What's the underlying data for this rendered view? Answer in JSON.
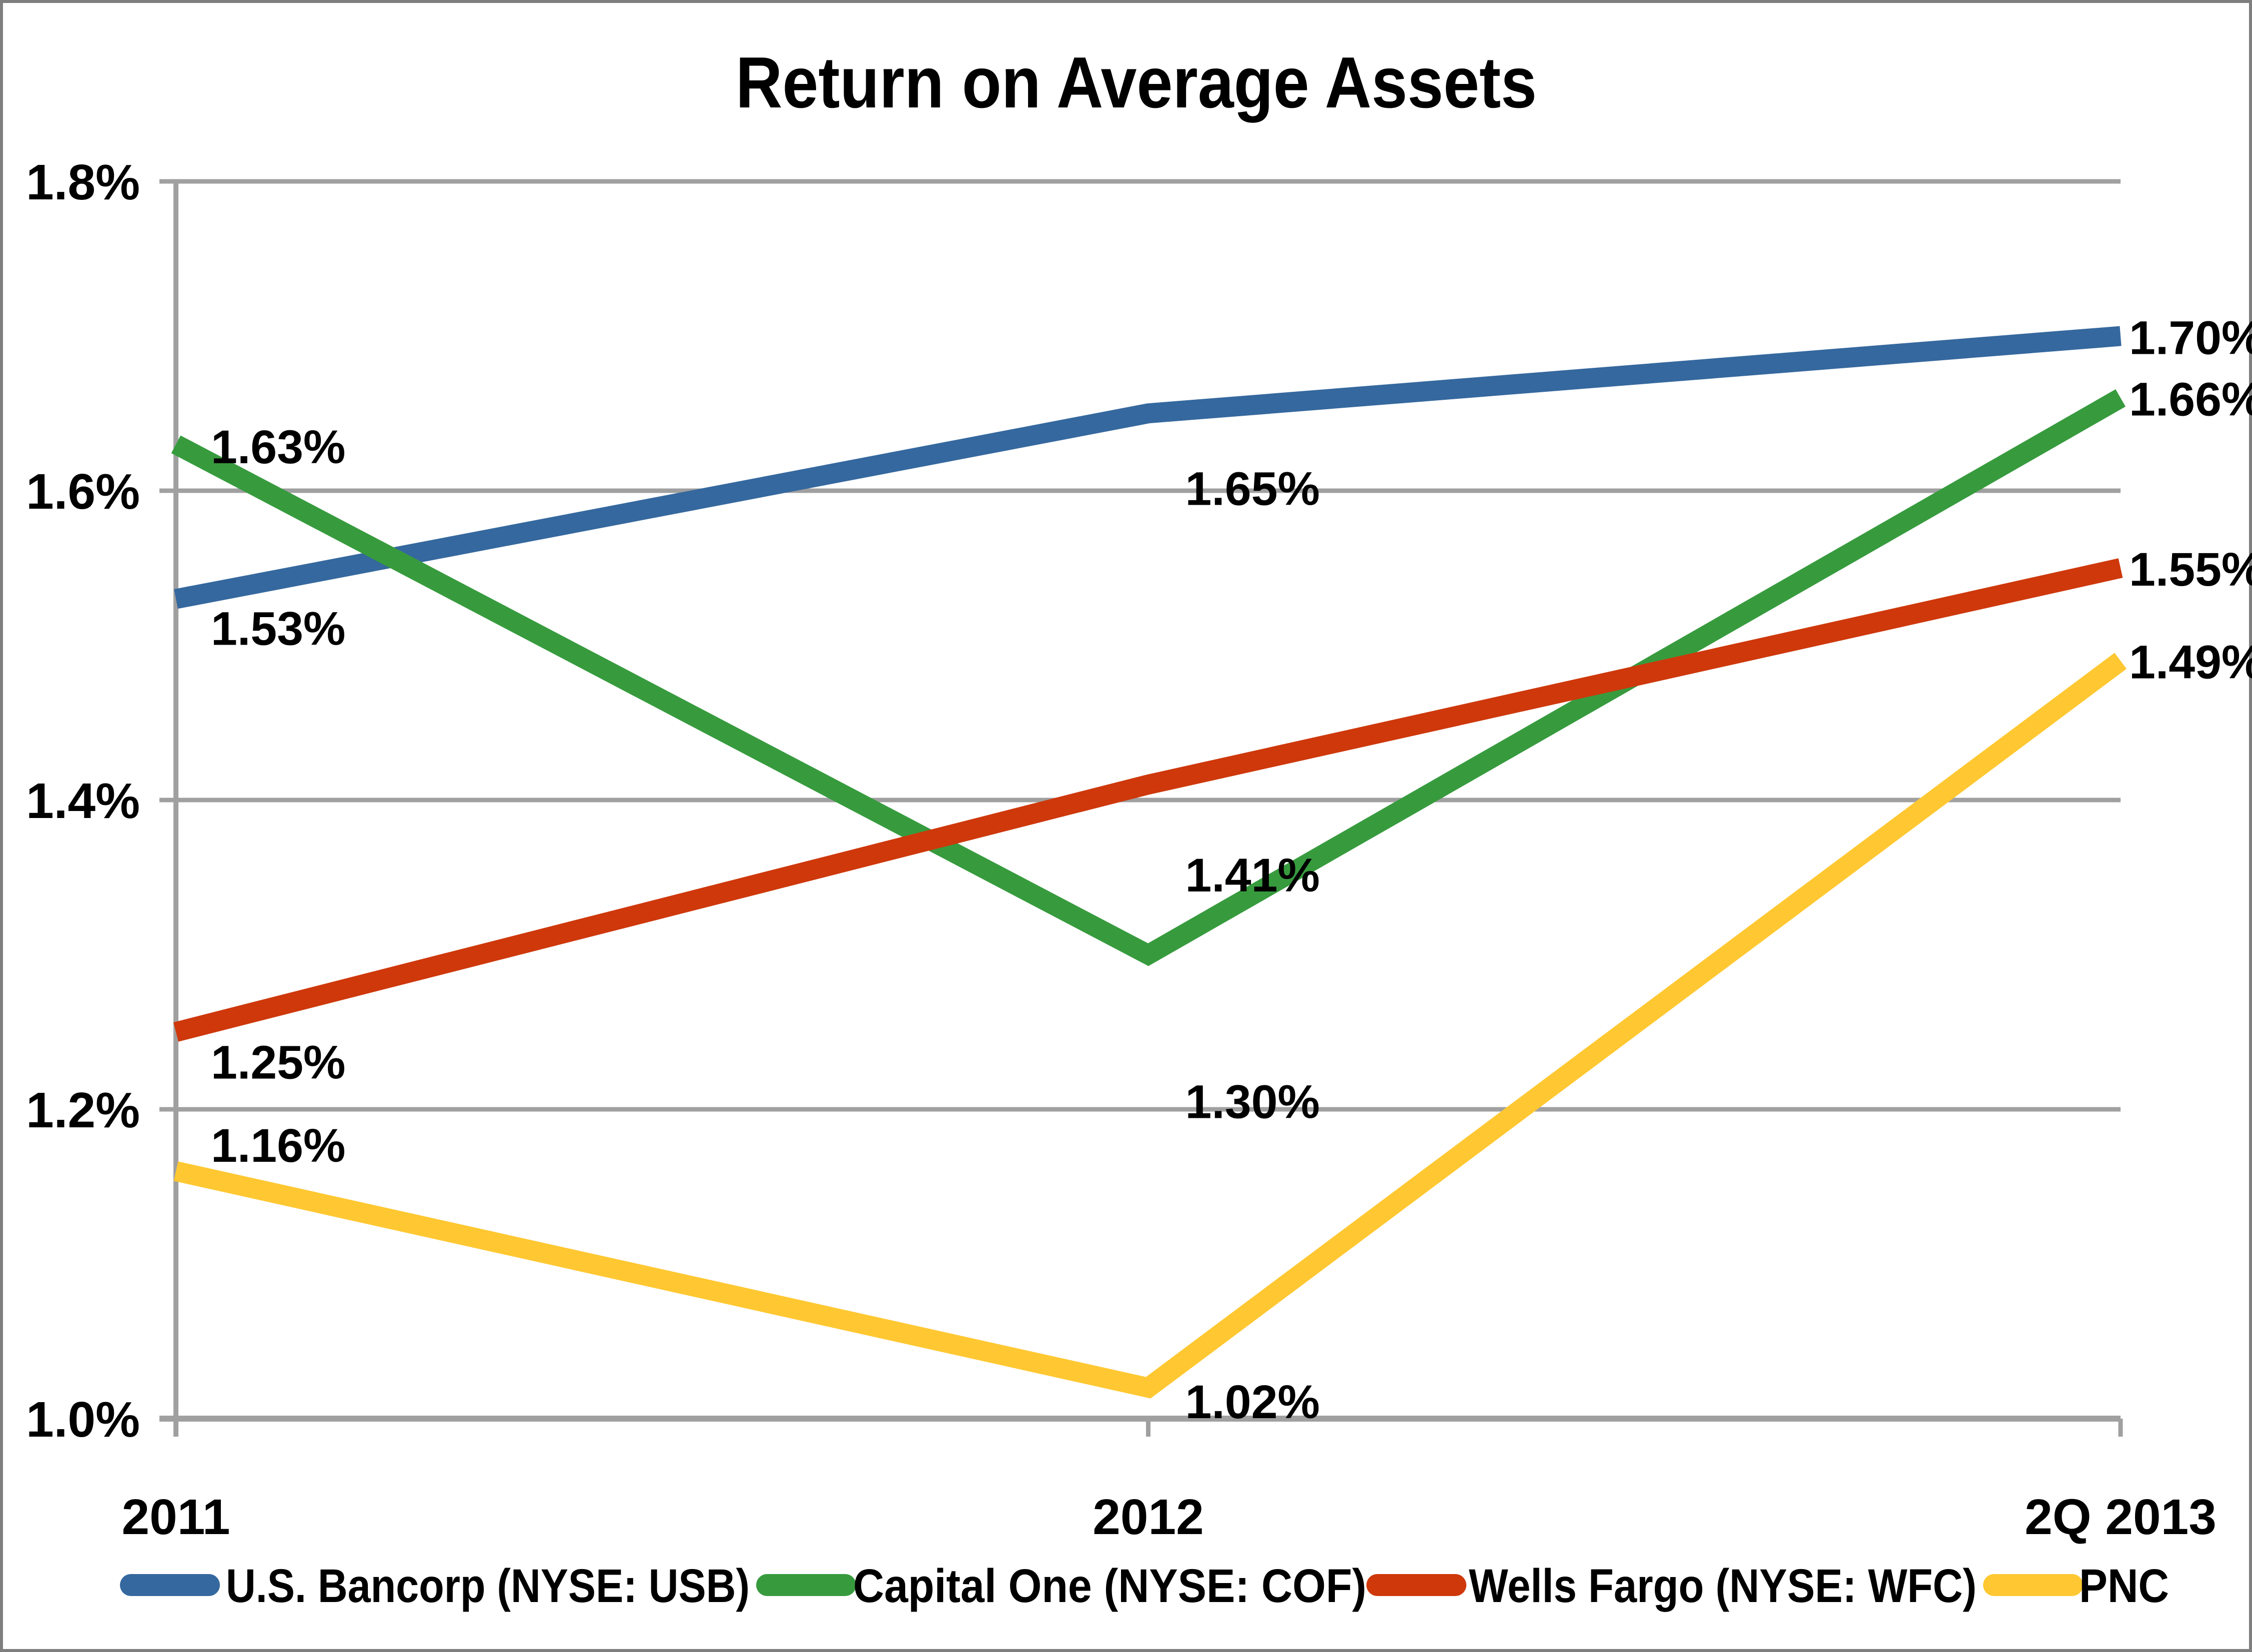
{
  "title": "Return on Average Assets",
  "colors": {
    "usb_blue": "#35689E",
    "cof_green": "#379B3E",
    "wfc_red": "#CE380B",
    "pnc_yellow": "#FFC832",
    "gridline_gray": "#A0A0A0",
    "frame_gray": "#7F7F7F",
    "text_black": "#000000"
  },
  "chart_data": {
    "type": "line",
    "title": "Return on Average Assets",
    "categories": [
      "2011",
      "2012",
      "2Q 2013"
    ],
    "y_ticks": [
      "1.8%",
      "1.6%",
      "1.4%",
      "1.2%",
      "1.0%"
    ],
    "y_tick_values": [
      1.8,
      1.6,
      1.4,
      1.2,
      1.0
    ],
    "ylim": [
      1.0,
      1.8
    ],
    "grid": true,
    "legend_position": "bottom",
    "series": [
      {
        "name": "U.S. Bancorp (NYSE: USB)",
        "color": "#35689E",
        "values": [
          1.53,
          1.65,
          1.7
        ],
        "labels": [
          "1.53%",
          "1.65%",
          "1.70%"
        ]
      },
      {
        "name": "Capital One (NYSE: COF)",
        "color": "#379B3E",
        "values": [
          1.63,
          1.3,
          1.66
        ],
        "labels": [
          "1.63%",
          "1.30%",
          "1.66%"
        ]
      },
      {
        "name": "Wells Fargo (NYSE: WFC)",
        "color": "#CE380B",
        "values": [
          1.25,
          1.41,
          1.55
        ],
        "labels": [
          "1.25%",
          "1.41%",
          "1.55%"
        ]
      },
      {
        "name": "PNC",
        "color": "#FFC832",
        "values": [
          1.16,
          1.02,
          1.49
        ],
        "labels": [
          "1.16%",
          "1.02%",
          "1.49%"
        ]
      }
    ]
  },
  "legend": {
    "items": [
      {
        "label": "U.S. Bancorp (NYSE: USB)",
        "color": "#35689E"
      },
      {
        "label": "Capital One (NYSE: COF)",
        "color": "#379B3E"
      },
      {
        "label": "Wells Fargo (NYSE: WFC)",
        "color": "#CE380B"
      },
      {
        "label": "PNC",
        "color": "#FFC832"
      }
    ]
  }
}
